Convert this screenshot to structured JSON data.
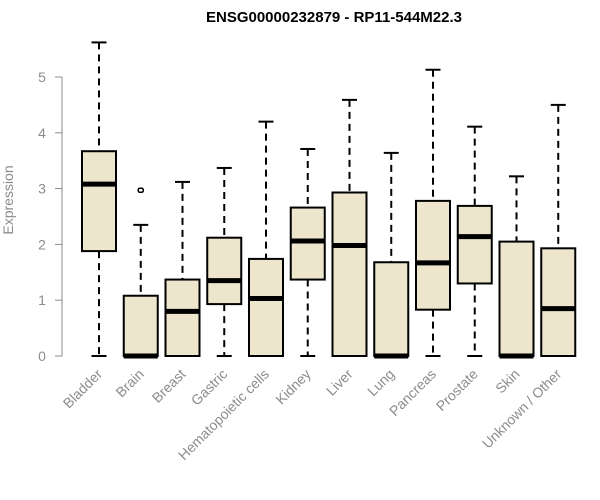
{
  "chart_data": {
    "type": "box",
    "title": "ENSG00000232879 - RP11-544M22.3",
    "xlabel": "",
    "ylabel": "Expression",
    "ylim": [
      0,
      5.8
    ],
    "yticks": [
      0,
      1,
      2,
      3,
      4,
      5
    ],
    "categories": [
      "Bladder",
      "Brain",
      "Breast",
      "Gastric",
      "Hematopoietic cells",
      "Kidney",
      "Liver",
      "Lung",
      "Pancreas",
      "Prostate",
      "Skin",
      "Unknown / Other"
    ],
    "boxes": [
      {
        "min": 0,
        "q1": 1.88,
        "median": 3.08,
        "q3": 3.67,
        "max": 5.62,
        "outliers": []
      },
      {
        "min": 0,
        "q1": 0,
        "median": 0,
        "q3": 1.08,
        "max": 2.35,
        "outliers": [
          2.97
        ]
      },
      {
        "min": 0,
        "q1": 0,
        "median": 0.8,
        "q3": 1.37,
        "max": 3.12,
        "outliers": []
      },
      {
        "min": 0,
        "q1": 0.93,
        "median": 1.35,
        "q3": 2.12,
        "max": 3.37,
        "outliers": []
      },
      {
        "min": 0,
        "q1": 0,
        "median": 1.03,
        "q3": 1.74,
        "max": 4.2,
        "outliers": []
      },
      {
        "min": 0,
        "q1": 1.37,
        "median": 2.06,
        "q3": 2.66,
        "max": 3.71,
        "outliers": []
      },
      {
        "min": 0,
        "q1": 0,
        "median": 1.98,
        "q3": 2.93,
        "max": 4.59,
        "outliers": []
      },
      {
        "min": 0,
        "q1": 0,
        "median": 0,
        "q3": 1.68,
        "max": 3.64,
        "outliers": []
      },
      {
        "min": 0,
        "q1": 0.83,
        "median": 1.67,
        "q3": 2.78,
        "max": 5.13,
        "outliers": []
      },
      {
        "min": 0,
        "q1": 1.3,
        "median": 2.14,
        "q3": 2.69,
        "max": 4.11,
        "outliers": []
      },
      {
        "min": 0,
        "q1": 0,
        "median": 0,
        "q3": 2.05,
        "max": 3.22,
        "outliers": []
      },
      {
        "min": 0,
        "q1": 0,
        "median": 0.85,
        "q3": 1.93,
        "max": 4.5,
        "outliers": []
      }
    ],
    "box_fill": "#ede6cd",
    "box_stroke": "#000000",
    "axis_color": "#8c8c8c",
    "grid": false
  }
}
